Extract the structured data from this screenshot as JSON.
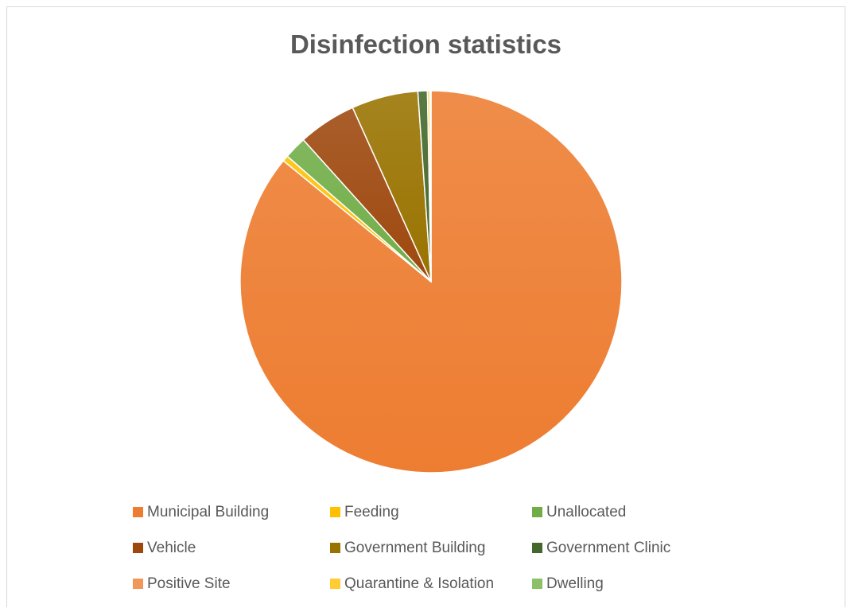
{
  "chart_data": {
    "type": "pie",
    "title": "Disinfection statistics",
    "legend_position": "bottom",
    "categories": [
      "Municipal Building",
      "Feeding",
      "Unallocated",
      "Vehicle",
      "Government Building",
      "Government Clinic",
      "Positive Site",
      "Quarantine & Isolation",
      "Dwelling"
    ],
    "values": [
      85.4,
      0.5,
      1.9,
      4.9,
      5.6,
      0.8,
      0.0,
      0.2,
      0.1
    ],
    "colors": [
      "#ED7D31",
      "#FFC000",
      "#70AD47",
      "#9E480E",
      "#997300",
      "#43682B",
      "#F1975A",
      "#FFCD33",
      "#8CC168"
    ]
  }
}
